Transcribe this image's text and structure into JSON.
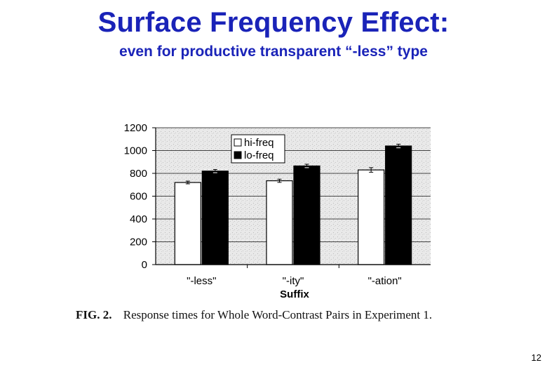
{
  "slide": {
    "title": "Surface Frequency Effect:",
    "subtitle": "even for productive transparent “-less” type",
    "caption_label": "FIG. 2.",
    "caption_text": "Response times for Whole Word-Contrast Pairs in Experiment 1.",
    "page_number": "12"
  },
  "chart_data": {
    "type": "bar",
    "categories": [
      "\"-less\"",
      "\"-ity\"",
      "\"-ation\""
    ],
    "series": [
      {
        "name": "hi-freq",
        "values": [
          720,
          735,
          830
        ],
        "errors": [
          12,
          14,
          20
        ],
        "color": "#ffffff"
      },
      {
        "name": "lo-freq",
        "values": [
          820,
          865,
          1040
        ],
        "errors": [
          14,
          15,
          16
        ],
        "color": "#000000"
      }
    ],
    "xlabel": "Suffix",
    "ylabel": "",
    "ylim": [
      0,
      1200
    ],
    "yticks": [
      "0",
      "200",
      "400",
      "600",
      "800",
      "1000",
      "1200"
    ],
    "grid": true,
    "legend_position": "top-left"
  }
}
